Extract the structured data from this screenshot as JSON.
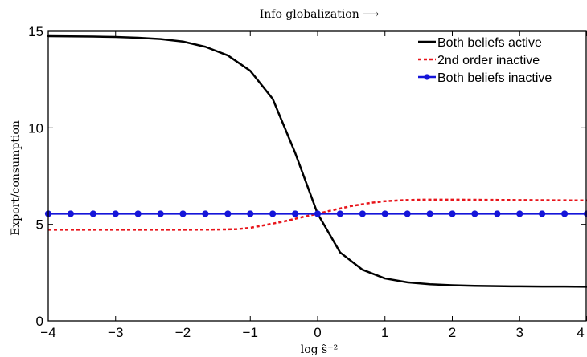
{
  "chart_data": {
    "type": "line",
    "title": "Info globalization ⟶",
    "xlabel": "log s̃⁻²",
    "ylabel": "Export/consumption",
    "xlim": [
      -4,
      4
    ],
    "ylim": [
      0,
      15
    ],
    "xticks": [
      -4,
      -3,
      -2,
      -1,
      0,
      1,
      2,
      3,
      4
    ],
    "yticks": [
      0,
      5,
      10,
      15
    ],
    "xtick_labels": [
      "−4",
      "−3",
      "−2",
      "−1",
      "0",
      "1",
      "2",
      "3",
      "4"
    ],
    "ytick_labels": [
      "0",
      "5",
      "10",
      "15"
    ],
    "grid": false,
    "legend_position": "top-right",
    "series": [
      {
        "name": "Both beliefs active",
        "color": "#000000",
        "style": "solid",
        "marker": "none",
        "x": [
          -4,
          -3.667,
          -3.333,
          -3,
          -2.667,
          -2.333,
          -2,
          -1.667,
          -1.333,
          -1,
          -0.667,
          -0.333,
          0,
          0.333,
          0.667,
          1,
          1.333,
          1.667,
          2,
          2.333,
          2.667,
          3,
          3.333,
          3.667,
          4
        ],
        "y": [
          14.75,
          14.74,
          14.73,
          14.71,
          14.67,
          14.6,
          14.47,
          14.2,
          13.75,
          12.95,
          11.5,
          8.7,
          5.55,
          3.55,
          2.65,
          2.2,
          2.0,
          1.9,
          1.85,
          1.82,
          1.8,
          1.79,
          1.78,
          1.78,
          1.77
        ]
      },
      {
        "name": "2nd order inactive",
        "color": "#e8141a",
        "style": "dotted",
        "marker": "none",
        "x": [
          -4,
          -3.5,
          -3,
          -2.5,
          -2,
          -1.5,
          -1.2,
          -1,
          -0.8,
          -0.5,
          -0.2,
          0,
          0.2,
          0.5,
          0.8,
          1,
          1.3,
          1.6,
          2,
          2.5,
          3,
          3.5,
          4
        ],
        "y": [
          4.72,
          4.72,
          4.72,
          4.72,
          4.72,
          4.73,
          4.75,
          4.82,
          4.95,
          5.15,
          5.4,
          5.55,
          5.72,
          5.95,
          6.12,
          6.2,
          6.26,
          6.28,
          6.28,
          6.27,
          6.26,
          6.25,
          6.24
        ]
      },
      {
        "name": "Both beliefs inactive",
        "color": "#1515d9",
        "style": "solid",
        "marker": "circle",
        "x": [
          -4,
          -3.667,
          -3.333,
          -3,
          -2.667,
          -2.333,
          -2,
          -1.667,
          -1.333,
          -1,
          -0.667,
          -0.333,
          0,
          0.333,
          0.667,
          1,
          1.333,
          1.667,
          2,
          2.333,
          2.667,
          3,
          3.333,
          3.667,
          4
        ],
        "y": [
          5.55,
          5.55,
          5.55,
          5.55,
          5.55,
          5.55,
          5.55,
          5.55,
          5.55,
          5.55,
          5.55,
          5.55,
          5.55,
          5.55,
          5.55,
          5.55,
          5.55,
          5.55,
          5.55,
          5.55,
          5.55,
          5.55,
          5.55,
          5.55,
          5.55
        ]
      }
    ]
  }
}
